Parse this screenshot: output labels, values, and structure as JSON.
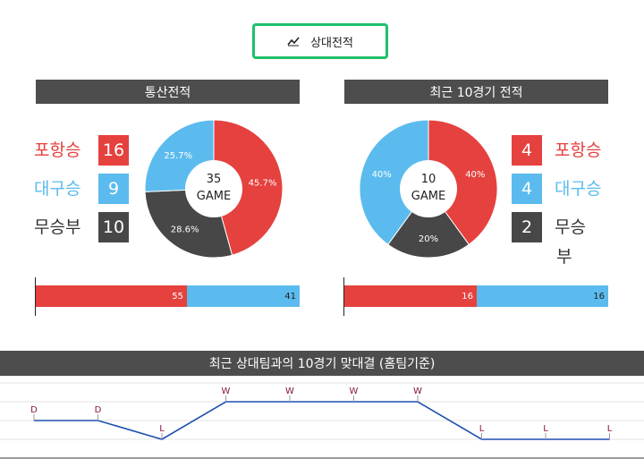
{
  "tab": {
    "label": "상대전적",
    "icon": "line-chart-icon"
  },
  "left": {
    "title": "통산전적",
    "center": {
      "count": "35",
      "unit": "GAME"
    },
    "rows": [
      {
        "label": "포항승",
        "value": "16",
        "color": "#e5413e"
      },
      {
        "label": "대구승",
        "value": "9",
        "color": "#5bbbee"
      },
      {
        "label": "무승부",
        "value": "10",
        "color": "#474747"
      }
    ],
    "bar": {
      "left": "55",
      "right": "41"
    }
  },
  "right": {
    "title": "최근 10경기 전적",
    "center": {
      "count": "10",
      "unit": "GAME"
    },
    "rows": [
      {
        "label": "포항승",
        "value": "4",
        "color": "#e5413e"
      },
      {
        "label": "대구승",
        "value": "4",
        "color": "#5bbbee"
      },
      {
        "label": "무승",
        "label2": "부",
        "value": "2",
        "color": "#474747"
      }
    ],
    "bar": {
      "left": "16",
      "right": "16"
    }
  },
  "trend": {
    "title": "최근 상대팀과의 10경기 맞대결 (홈팀기준)",
    "results": [
      "D",
      "D",
      "L",
      "W",
      "W",
      "W",
      "W",
      "L",
      "L",
      "L"
    ]
  },
  "chart_data": [
    {
      "type": "pie",
      "title": "통산전적",
      "categories": [
        "포항승",
        "무승부",
        "대구승"
      ],
      "values": [
        45.7,
        28.6,
        25.7
      ],
      "labels": [
        "45.7%",
        "28.6%",
        "25.7%"
      ],
      "colors": [
        "#e5413e",
        "#474747",
        "#5bbbee"
      ]
    },
    {
      "type": "pie",
      "title": "최근 10경기 전적",
      "categories": [
        "포항승",
        "무승부",
        "대구승"
      ],
      "values": [
        40,
        20,
        40
      ],
      "labels": [
        "40%",
        "20%",
        "40%"
      ],
      "colors": [
        "#e5413e",
        "#474747",
        "#5bbbee"
      ]
    }
  ]
}
